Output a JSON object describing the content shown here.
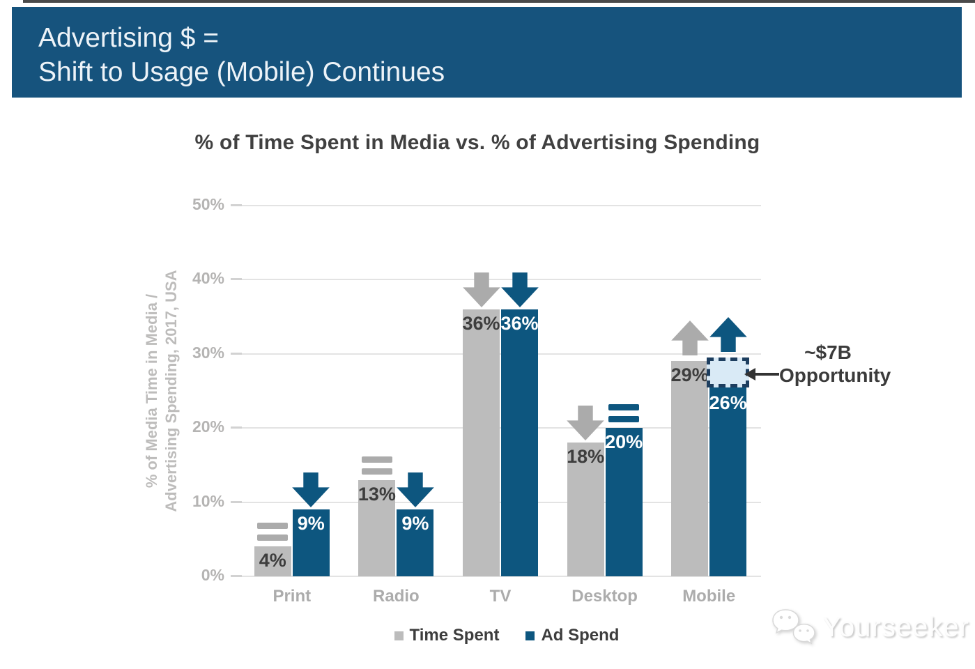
{
  "header": {
    "line1": "Advertising $ =",
    "line2": "Shift to Usage (Mobile) Continues",
    "background": "#16537d",
    "text_color": "#edf3f8"
  },
  "chart_data": {
    "type": "bar",
    "title": "% of Time Spent in Media vs. % of Advertising Spending",
    "ylabel": [
      "% of Media Time in Media /",
      "Advertising Spending, 2017, USA"
    ],
    "categories": [
      "Print",
      "Radio",
      "TV",
      "Desktop",
      "Mobile"
    ],
    "series": [
      {
        "name": "Time Spent",
        "color": "#bcbcbc",
        "values": [
          4,
          13,
          36,
          18,
          29
        ],
        "labels": [
          "4%",
          "13%",
          "36%",
          "18%",
          "29%"
        ],
        "label_color": "#3d3d3d",
        "trend": [
          "flat",
          "flat",
          "down",
          "down",
          "up"
        ],
        "trend_color": "#ababab"
      },
      {
        "name": "Ad Spend",
        "color": "#0d567f",
        "values": [
          9,
          9,
          36,
          20,
          26
        ],
        "labels": [
          "9%",
          "9%",
          "36%",
          "20%",
          "26%"
        ],
        "label_color": "#ffffff",
        "trend": [
          "down",
          "down",
          "down",
          "flat",
          "up"
        ],
        "trend_color": "#0d567f"
      }
    ],
    "ylim": [
      0,
      50
    ],
    "ytick_step": 10,
    "yticks": [
      "0%",
      "10%",
      "20%",
      "30%",
      "40%",
      "50%"
    ],
    "grid": true,
    "legend_position": "bottom",
    "annotation": {
      "line1": "~$7B",
      "line2": "Opportunity",
      "gap_box": {
        "category": "Mobile",
        "series": "Ad Spend",
        "from_value": 26,
        "to_value": 29.5,
        "fill": "#d9eaf6",
        "border": "#1d3e5f"
      }
    }
  },
  "watermark": {
    "text": "Yourseeker"
  }
}
